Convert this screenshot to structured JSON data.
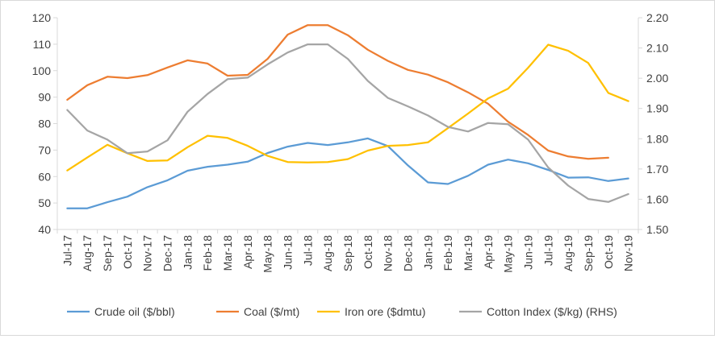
{
  "chart_data": {
    "type": "line",
    "categories": [
      "Jul-17",
      "Aug-17",
      "Sep-17",
      "Oct-17",
      "Nov-17",
      "Dec-17",
      "Jan-18",
      "Feb-18",
      "Mar-18",
      "Apr-18",
      "May-18",
      "Jun-18",
      "Jul-18",
      "Aug-18",
      "Sep-18",
      "Oct-18",
      "Nov-18",
      "Dec-18",
      "Jan-19",
      "Feb-19",
      "Mar-19",
      "Apr-19",
      "May-19",
      "Jun-19",
      "Jul-19",
      "Aug-19",
      "Sep-19",
      "Oct-19",
      "Nov-19"
    ],
    "y_left": {
      "min": 40,
      "max": 120,
      "step": 10,
      "ticks": [
        "40",
        "50",
        "60",
        "70",
        "80",
        "90",
        "100",
        "110",
        "120"
      ]
    },
    "y_right": {
      "min": 1.5,
      "max": 2.2,
      "step": 0.1,
      "ticks": [
        "1.50",
        "1.60",
        "1.70",
        "1.80",
        "1.90",
        "2.00",
        "2.10",
        "2.20"
      ]
    },
    "grid": false,
    "legend_position": "bottom",
    "series": [
      {
        "name": "Crude oil ($/bbl)",
        "color": "#5b9bd5",
        "axis": "left",
        "values": [
          48,
          48,
          50.3,
          52.4,
          56,
          58.6,
          62.2,
          63.7,
          64.5,
          65.6,
          68.9,
          71.3,
          72.7,
          71.9,
          72.9,
          74.4,
          71.5,
          64.2,
          57.8,
          57.2,
          60.3,
          64.5,
          66.4,
          65,
          62.5,
          59.6,
          59.7,
          58.3,
          59.3
        ]
      },
      {
        "name": "Coal ($/mt)",
        "color": "#ed7d31",
        "axis": "left",
        "values": [
          89,
          94.5,
          97.7,
          97.2,
          98.3,
          101.2,
          103.9,
          102.7,
          98.1,
          98.4,
          104.5,
          113.6,
          117.2,
          117.2,
          113.4,
          107.9,
          103.7,
          100.3,
          98.5,
          95.6,
          91.8,
          87.5,
          80.7,
          75.7,
          69.8,
          67.6,
          66.7,
          67.1,
          null
        ]
      },
      {
        "name": "Iron ore ($dmtu)",
        "color": "#ffc000",
        "axis": "left",
        "values": [
          62.3,
          67.2,
          72,
          68.8,
          65.9,
          66.1,
          71.1,
          75.4,
          74.6,
          71.6,
          67.8,
          65.5,
          65.3,
          65.5,
          66.6,
          69.8,
          71.6,
          71.9,
          72.9,
          78.3,
          83.8,
          89.5,
          93.2,
          101.1,
          109.8,
          107.5,
          102.9,
          91.6,
          88.5
        ]
      },
      {
        "name": "Cotton Index ($/kg) (RHS)",
        "color": "#a5a5a5",
        "axis": "right",
        "values": [
          1.895,
          1.827,
          1.797,
          1.752,
          1.758,
          1.795,
          1.889,
          1.948,
          1.997,
          2.002,
          2.046,
          2.085,
          2.112,
          2.112,
          2.064,
          1.991,
          1.935,
          1.907,
          1.877,
          1.839,
          1.824,
          1.852,
          1.848,
          1.797,
          1.705,
          1.645,
          1.601,
          1.591,
          1.617
        ]
      }
    ]
  }
}
